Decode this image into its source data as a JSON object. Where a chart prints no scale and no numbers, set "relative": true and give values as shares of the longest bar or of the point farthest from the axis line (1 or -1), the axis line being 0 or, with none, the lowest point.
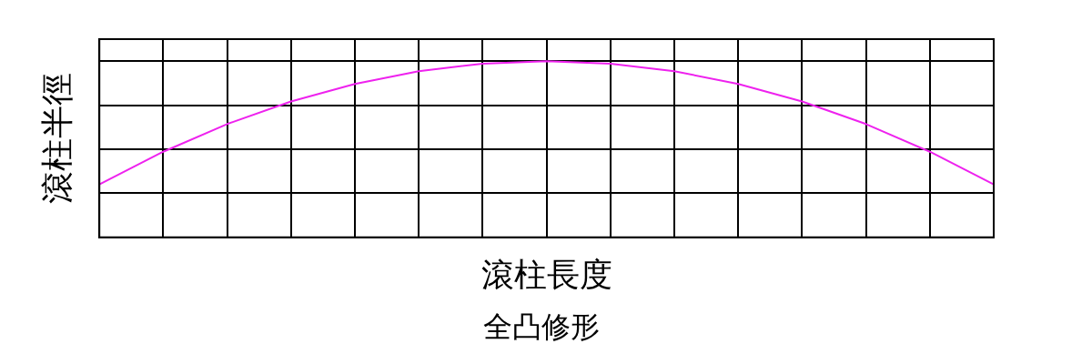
{
  "chart_data": {
    "type": "line",
    "relative": true,
    "xlabel": "滾柱長度",
    "ylabel": "滾柱半徑",
    "annotations": [
      "全凸修形"
    ],
    "categories": [
      null,
      null,
      null,
      null,
      null,
      null,
      null,
      null,
      null,
      null,
      null,
      null,
      null,
      null,
      null
    ],
    "series": [
      {
        "color": "#ee22ee",
        "values": [
          0.3,
          0.486,
          0.643,
          0.771,
          0.871,
          0.943,
          0.986,
          1,
          0.986,
          0.943,
          0.871,
          0.771,
          0.643,
          0.486,
          0.3
        ]
      }
    ],
    "grid": true,
    "marker": "none",
    "line_style": "solid",
    "legend": false
  }
}
